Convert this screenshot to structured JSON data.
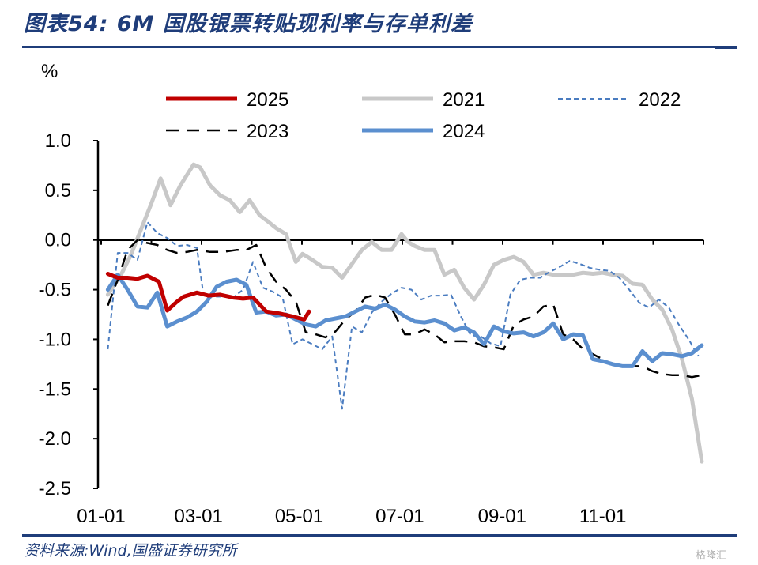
{
  "header": {
    "title": "图表54:  6M 国股银票转贴现利率与存单利差"
  },
  "footer": {
    "source": "资料来源:Wind,国盛证券研究所",
    "watermark": "格隆汇"
  },
  "chart_data": {
    "type": "line",
    "ylabel": "%",
    "ylim": [
      -2.5,
      1.0
    ],
    "yticks": [
      "1.0",
      "0.5",
      "0.0",
      "-0.5",
      "-1.0",
      "-1.5",
      "-2.0",
      "-2.5"
    ],
    "yticks_values": [
      1.0,
      0.5,
      0.0,
      -0.5,
      -1.0,
      -1.5,
      -2.0,
      -2.5
    ],
    "xticks": [
      "01-01",
      "03-01",
      "05-01",
      "07-01",
      "09-01",
      "11-01"
    ],
    "xticks_values": [
      0,
      59,
      120,
      181,
      243,
      304
    ],
    "xlim": [
      0,
      365
    ],
    "grid": false,
    "legend_placement": "top",
    "series": [
      {
        "name": "2025",
        "color": "#c00000",
        "style": "solid",
        "width": 5,
        "x": [
          4,
          10,
          16,
          22,
          28,
          35,
          40,
          46,
          50,
          58,
          65,
          72,
          80,
          86,
          92,
          100,
          108,
          116,
          123,
          126
        ],
        "y": [
          -0.34,
          -0.38,
          -0.38,
          -0.39,
          -0.36,
          -0.42,
          -0.71,
          -0.62,
          -0.57,
          -0.53,
          -0.56,
          -0.55,
          -0.58,
          -0.59,
          -0.58,
          -0.72,
          -0.74,
          -0.77,
          -0.8,
          -0.72
        ]
      },
      {
        "name": "2021",
        "color": "#c8c8c8",
        "style": "solid",
        "width": 5,
        "x": [
          4,
          12,
          18,
          24,
          30,
          36,
          42,
          48,
          56,
          60,
          66,
          72,
          78,
          84,
          90,
          96,
          100,
          106,
          112,
          118,
          122,
          128,
          134,
          140,
          146,
          152,
          158,
          164,
          170,
          176,
          182,
          186,
          190,
          196,
          202,
          208,
          214,
          220,
          226,
          232,
          238,
          244,
          250,
          256,
          262,
          268,
          274,
          280,
          286,
          292,
          298,
          304,
          310,
          316,
          322,
          328,
          334,
          340,
          346,
          352,
          358,
          364
        ],
        "y": [
          -0.55,
          -0.35,
          -0.15,
          0.1,
          0.35,
          0.62,
          0.35,
          0.55,
          0.76,
          0.73,
          0.55,
          0.45,
          0.4,
          0.28,
          0.4,
          0.25,
          0.2,
          0.12,
          0.06,
          -0.22,
          -0.14,
          -0.2,
          -0.27,
          -0.28,
          -0.38,
          -0.24,
          -0.1,
          -0.02,
          -0.1,
          -0.1,
          0.06,
          -0.02,
          -0.06,
          -0.1,
          -0.1,
          -0.35,
          -0.3,
          -0.48,
          -0.6,
          -0.45,
          -0.25,
          -0.2,
          -0.17,
          -0.22,
          -0.35,
          -0.33,
          -0.35,
          -0.35,
          -0.35,
          -0.33,
          -0.34,
          -0.33,
          -0.35,
          -0.36,
          -0.44,
          -0.45,
          -0.6,
          -0.7,
          -0.9,
          -1.2,
          -1.6,
          -2.23
        ]
      },
      {
        "name": "2022",
        "color": "#4a7cc0",
        "style": "dashed-fine",
        "width": 2,
        "x": [
          4,
          10,
          16,
          22,
          28,
          34,
          40,
          46,
          52,
          58,
          62,
          68,
          74,
          80,
          86,
          92,
          98,
          104,
          110,
          116,
          122,
          128,
          134,
          140,
          146,
          152,
          158,
          164,
          170,
          176,
          182,
          188,
          194,
          200,
          206,
          212,
          218,
          224,
          230,
          236,
          242,
          248,
          254,
          260,
          266,
          272,
          278,
          284,
          290,
          296,
          302,
          308,
          314,
          320,
          326,
          332,
          338,
          344,
          350,
          356,
          362
        ],
        "y": [
          -1.1,
          -0.13,
          -0.13,
          -0.2,
          0.18,
          0.07,
          0.02,
          -0.06,
          -0.05,
          -0.08,
          -0.55,
          -0.57,
          -0.57,
          -0.58,
          -0.5,
          -0.22,
          -0.48,
          -0.52,
          -0.58,
          -1.05,
          -1.0,
          -1.05,
          -1.1,
          -0.97,
          -1.7,
          -0.87,
          -0.93,
          -0.73,
          -0.62,
          -0.54,
          -0.48,
          -0.5,
          -0.6,
          -0.56,
          -0.56,
          -0.55,
          -0.77,
          -0.96,
          -0.97,
          -1.04,
          -1.07,
          -0.55,
          -0.4,
          -0.38,
          -0.38,
          -0.32,
          -0.27,
          -0.21,
          -0.24,
          -0.28,
          -0.3,
          -0.31,
          -0.38,
          -0.5,
          -0.63,
          -0.68,
          -0.6,
          -0.68,
          -0.85,
          -1.0,
          -1.17
        ]
      },
      {
        "name": "2023",
        "color": "#000000",
        "style": "dashed-long",
        "width": 2.5,
        "x": [
          4,
          10,
          16,
          22,
          28,
          34,
          40,
          46,
          52,
          58,
          66,
          74,
          82,
          88,
          94,
          100,
          106,
          112,
          118,
          124,
          130,
          136,
          142,
          148,
          154,
          160,
          166,
          172,
          178,
          184,
          190,
          196,
          202,
          208,
          214,
          220,
          226,
          232,
          238,
          244,
          250,
          256,
          262,
          268,
          274,
          280,
          286,
          292,
          298,
          304,
          310,
          316,
          322,
          328,
          334,
          340,
          346,
          352,
          358,
          364
        ],
        "y": [
          -0.66,
          -0.4,
          -0.1,
          0.0,
          -0.03,
          -0.05,
          -0.1,
          -0.13,
          -0.12,
          -0.1,
          -0.12,
          -0.12,
          -0.1,
          -0.1,
          -0.05,
          -0.28,
          -0.42,
          -0.5,
          -0.62,
          -0.93,
          -0.95,
          -0.98,
          -0.92,
          -0.8,
          -0.72,
          -0.58,
          -0.55,
          -0.58,
          -0.75,
          -0.95,
          -0.95,
          -0.9,
          -0.95,
          -1.03,
          -1.02,
          -1.02,
          -1.03,
          -1.07,
          -1.08,
          -1.1,
          -0.86,
          -0.8,
          -0.77,
          -0.67,
          -0.65,
          -0.95,
          -1.0,
          -1.1,
          -1.15,
          -1.2,
          -1.25,
          -1.27,
          -1.27,
          -1.27,
          -1.32,
          -1.35,
          -1.36,
          -1.36,
          -1.38,
          -1.36
        ]
      },
      {
        "name": "2024",
        "color": "#5b8fcf",
        "style": "solid",
        "width": 5,
        "x": [
          4,
          10,
          16,
          22,
          28,
          34,
          40,
          46,
          52,
          58,
          64,
          70,
          76,
          82,
          88,
          94,
          100,
          106,
          112,
          118,
          124,
          130,
          136,
          142,
          148,
          154,
          160,
          166,
          172,
          178,
          184,
          190,
          196,
          202,
          208,
          214,
          220,
          226,
          232,
          238,
          244,
          250,
          256,
          262,
          268,
          274,
          280,
          286,
          292,
          298,
          304,
          310,
          316,
          322,
          328,
          334,
          340,
          346,
          352,
          358,
          364
        ],
        "y": [
          -0.5,
          -0.35,
          -0.5,
          -0.67,
          -0.68,
          -0.53,
          -0.87,
          -0.82,
          -0.78,
          -0.72,
          -0.62,
          -0.47,
          -0.42,
          -0.4,
          -0.45,
          -0.73,
          -0.72,
          -0.76,
          -0.75,
          -0.8,
          -0.85,
          -0.87,
          -0.81,
          -0.79,
          -0.77,
          -0.72,
          -0.67,
          -0.69,
          -0.65,
          -0.7,
          -0.77,
          -0.82,
          -0.83,
          -0.81,
          -0.84,
          -0.91,
          -0.88,
          -0.93,
          -1.05,
          -0.87,
          -0.92,
          -0.94,
          -0.93,
          -0.97,
          -0.93,
          -0.84,
          -1.0,
          -0.95,
          -0.96,
          -1.2,
          -1.22,
          -1.25,
          -1.27,
          -1.27,
          -1.12,
          -1.22,
          -1.14,
          -1.15,
          -1.17,
          -1.14,
          -1.06
        ]
      }
    ]
  }
}
